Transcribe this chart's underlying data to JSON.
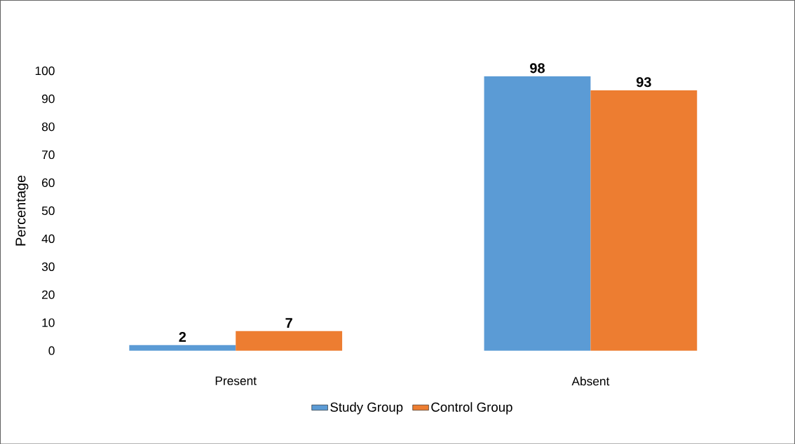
{
  "chart_data": {
    "type": "bar",
    "ylabel": "Percentage",
    "categories": [
      "Present",
      "Absent"
    ],
    "series": [
      {
        "name": "Study Group",
        "color": "#5b9bd5",
        "values": [
          2,
          98
        ]
      },
      {
        "name": "Control Group",
        "color": "#ed7d31",
        "values": [
          7,
          93
        ]
      }
    ],
    "ylim": [
      0,
      100
    ],
    "yticks": [
      0,
      10,
      20,
      30,
      40,
      50,
      60,
      70,
      80,
      90,
      100
    ],
    "data_labels": true,
    "legend": "bottom",
    "grid": false
  }
}
